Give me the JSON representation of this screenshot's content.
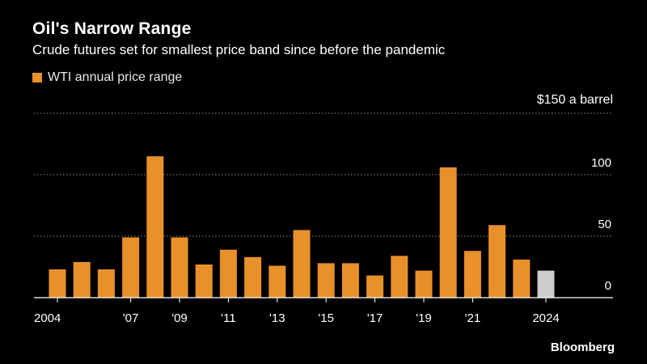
{
  "chart_data": {
    "type": "bar",
    "title": "Oil's Narrow Range",
    "subtitle": "Crude futures set for smallest price band since before the pandemic",
    "legend": [
      {
        "label": "WTI annual price range",
        "color": "#E8912A"
      }
    ],
    "unit_label": "$150 a barrel",
    "categories": [
      "2004",
      "2005",
      "2006",
      "2007",
      "2008",
      "2009",
      "2010",
      "2011",
      "2012",
      "2013",
      "2014",
      "2015",
      "2016",
      "2017",
      "2018",
      "2019",
      "2020",
      "2021",
      "2022",
      "2023",
      "2024"
    ],
    "values": [
      23,
      29,
      23,
      49,
      115,
      49,
      27,
      39,
      33,
      26,
      55,
      28,
      28,
      18,
      34,
      22,
      106,
      38,
      59,
      31,
      22
    ],
    "highlight_index": 20,
    "bar_color": "#E8912A",
    "highlight_color": "#CCCCCC",
    "ylim": [
      0,
      150
    ],
    "yticks": [
      {
        "value": 0,
        "label": "0"
      },
      {
        "value": 50,
        "label": "50"
      },
      {
        "value": 100,
        "label": "100"
      }
    ],
    "xticks": [
      {
        "index": 0,
        "label": "2004"
      },
      {
        "index": 3,
        "label": "'07"
      },
      {
        "index": 5,
        "label": "'09"
      },
      {
        "index": 7,
        "label": "'11"
      },
      {
        "index": 9,
        "label": "'13"
      },
      {
        "index": 11,
        "label": "'15"
      },
      {
        "index": 13,
        "label": "'17"
      },
      {
        "index": 15,
        "label": "'19"
      },
      {
        "index": 17,
        "label": "'21"
      },
      {
        "index": 20,
        "label": "2024"
      }
    ],
    "grid": true
  },
  "source": {
    "logo": "Bloomberg"
  },
  "colors": {
    "background": "#000000",
    "grid": "#8A8A8A",
    "axis": "#FFFFFF"
  }
}
